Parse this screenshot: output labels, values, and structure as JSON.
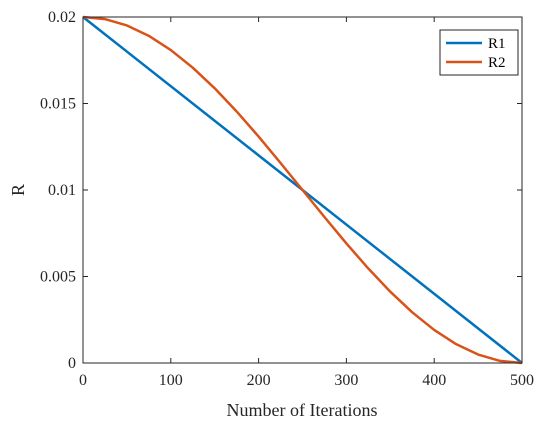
{
  "chart_data": {
    "type": "line",
    "title": "",
    "xlabel": "Number of Iterations",
    "ylabel": "R",
    "xlim": [
      0,
      500
    ],
    "ylim": [
      0,
      0.02
    ],
    "xticks": [
      0,
      100,
      200,
      300,
      400,
      500
    ],
    "yticks": [
      0,
      0.005,
      0.01,
      0.015,
      0.02
    ],
    "xtick_labels": [
      "0",
      "100",
      "200",
      "300",
      "400",
      "500"
    ],
    "ytick_labels": [
      "0",
      "0.005",
      "0.01",
      "0.015",
      "0.02"
    ],
    "grid": false,
    "legend_position": "top-right",
    "series": [
      {
        "name": "R1",
        "color": "#0072BD",
        "x": [
          0,
          500
        ],
        "y": [
          0.02,
          0
        ]
      },
      {
        "name": "R2",
        "color": "#D95319",
        "x": [
          0,
          25,
          50,
          75,
          100,
          125,
          150,
          175,
          200,
          225,
          250,
          275,
          300,
          325,
          350,
          375,
          400,
          425,
          450,
          475,
          500
        ],
        "y": [
          0.02,
          0.01988,
          0.01951,
          0.01891,
          0.01809,
          0.01707,
          0.01588,
          0.01454,
          0.01309,
          0.01156,
          0.01,
          0.00844,
          0.00691,
          0.00546,
          0.00412,
          0.00293,
          0.00191,
          0.00109,
          0.00049,
          0.00012,
          0
        ]
      }
    ]
  }
}
